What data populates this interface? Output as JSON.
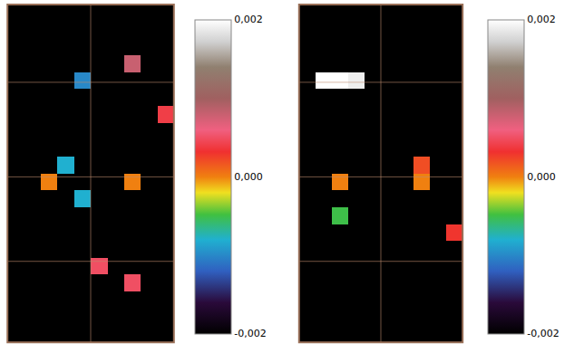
{
  "chart_data": [
    {
      "type": "heatmap",
      "tick_labels": false,
      "grid": true,
      "zlim": [
        -0.002,
        0.002
      ],
      "zticks": [
        {
          "value": 0.002,
          "label": "0,002"
        },
        {
          "value": 0,
          "label": "0,000"
        },
        {
          "value": -0.002,
          "label": "-0,002"
        }
      ],
      "z": [
        [
          -0.002,
          -0.002,
          -0.002,
          -0.002,
          -0.002,
          -0.002,
          -0.002,
          -0.002,
          -0.002,
          -0.002
        ],
        [
          -0.002,
          -0.002,
          -0.002,
          -0.002,
          -0.002,
          -0.002,
          -0.002,
          -0.002,
          -0.002,
          -0.002
        ],
        [
          -0.002,
          -0.002,
          -0.002,
          -0.002,
          -0.002,
          -0.002,
          -0.002,
          -0.002,
          -0.002,
          -0.002
        ],
        [
          -0.002,
          -0.002,
          -0.002,
          -0.002,
          -0.002,
          -0.002,
          -0.002,
          0.0008,
          -0.002,
          -0.002
        ],
        [
          -0.002,
          -0.002,
          -0.002,
          -0.002,
          -0.001,
          -0.002,
          -0.002,
          -0.002,
          -0.002,
          -0.002
        ],
        [
          -0.002,
          -0.002,
          -0.002,
          -0.002,
          -0.002,
          -0.002,
          -0.002,
          -0.002,
          -0.002,
          -0.002
        ],
        [
          -0.002,
          -0.002,
          -0.002,
          -0.002,
          -0.002,
          -0.002,
          -0.002,
          -0.002,
          -0.002,
          0.0004
        ],
        [
          -0.002,
          -0.002,
          -0.002,
          -0.002,
          -0.002,
          -0.002,
          -0.002,
          -0.002,
          -0.002,
          -0.002
        ],
        [
          -0.002,
          -0.002,
          -0.002,
          -0.002,
          -0.002,
          -0.002,
          -0.002,
          -0.002,
          -0.002,
          -0.002
        ],
        [
          -0.002,
          -0.002,
          -0.002,
          -0.0008,
          -0.002,
          -0.002,
          -0.002,
          -0.002,
          -0.002,
          -0.002
        ],
        [
          -0.002,
          -0.002,
          0,
          -0.002,
          -0.002,
          -0.002,
          -0.002,
          0,
          -0.002,
          -0.002
        ],
        [
          -0.002,
          -0.002,
          -0.002,
          -0.002,
          -0.0008,
          -0.002,
          -0.002,
          -0.002,
          -0.002,
          -0.002
        ],
        [
          -0.002,
          -0.002,
          -0.002,
          -0.002,
          -0.002,
          -0.002,
          -0.002,
          -0.002,
          -0.002,
          -0.002
        ],
        [
          -0.002,
          -0.002,
          -0.002,
          -0.002,
          -0.002,
          -0.002,
          -0.002,
          -0.002,
          -0.002,
          -0.002
        ],
        [
          -0.002,
          -0.002,
          -0.002,
          -0.002,
          -0.002,
          -0.002,
          -0.002,
          -0.002,
          -0.002,
          -0.002
        ],
        [
          -0.002,
          -0.002,
          -0.002,
          -0.002,
          -0.002,
          0.0005,
          -0.002,
          -0.002,
          -0.002,
          -0.002
        ],
        [
          -0.002,
          -0.002,
          -0.002,
          -0.002,
          -0.002,
          -0.002,
          -0.002,
          0.0005,
          -0.002,
          -0.002
        ],
        [
          -0.002,
          -0.002,
          -0.002,
          -0.002,
          -0.002,
          -0.002,
          -0.002,
          -0.002,
          -0.002,
          -0.002
        ],
        [
          -0.002,
          -0.002,
          -0.002,
          -0.002,
          -0.002,
          -0.002,
          -0.002,
          -0.002,
          -0.002,
          -0.002
        ],
        [
          -0.002,
          -0.002,
          -0.002,
          -0.002,
          -0.002,
          -0.002,
          -0.002,
          -0.002,
          -0.002,
          -0.002
        ]
      ]
    },
    {
      "type": "heatmap",
      "tick_labels": false,
      "grid": true,
      "zlim": [
        -0.002,
        0.002
      ],
      "zticks": [
        {
          "value": 0.002,
          "label": "0,002"
        },
        {
          "value": 0,
          "label": "0,000"
        },
        {
          "value": -0.002,
          "label": "-0,002"
        }
      ],
      "z": [
        [
          -0.002,
          -0.002,
          -0.002,
          -0.002,
          -0.002,
          -0.002,
          -0.002,
          -0.002,
          -0.002,
          -0.002
        ],
        [
          -0.002,
          -0.002,
          -0.002,
          -0.002,
          -0.002,
          -0.002,
          -0.002,
          -0.002,
          -0.002,
          -0.002
        ],
        [
          -0.002,
          -0.002,
          -0.002,
          -0.002,
          -0.002,
          -0.002,
          -0.002,
          -0.002,
          -0.002,
          -0.002
        ],
        [
          -0.002,
          -0.002,
          -0.002,
          -0.002,
          -0.002,
          -0.002,
          -0.002,
          -0.002,
          -0.002,
          -0.002
        ],
        [
          -0.002,
          0.002,
          0.002,
          0.0019,
          -0.002,
          -0.002,
          -0.002,
          -0.002,
          -0.002,
          -0.002
        ],
        [
          -0.002,
          -0.002,
          -0.002,
          -0.002,
          -0.002,
          -0.002,
          -0.002,
          -0.002,
          -0.002,
          -0.002
        ],
        [
          -0.002,
          -0.002,
          -0.002,
          -0.002,
          -0.002,
          -0.002,
          -0.002,
          -0.002,
          -0.002,
          -0.002
        ],
        [
          -0.002,
          -0.002,
          -0.002,
          -0.002,
          -0.002,
          -0.002,
          -0.002,
          -0.002,
          -0.002,
          -0.002
        ],
        [
          -0.002,
          -0.002,
          -0.002,
          -0.002,
          -0.002,
          -0.002,
          -0.002,
          -0.002,
          -0.002,
          -0.002
        ],
        [
          -0.002,
          -0.002,
          -0.002,
          -0.002,
          -0.002,
          -0.002,
          -0.002,
          0.0002,
          -0.002,
          -0.002
        ],
        [
          -0.002,
          -0.002,
          0,
          -0.002,
          -0.002,
          -0.002,
          -0.002,
          0,
          -0.002,
          -0.002
        ],
        [
          -0.002,
          -0.002,
          -0.002,
          -0.002,
          -0.002,
          -0.002,
          -0.002,
          -0.002,
          -0.002,
          -0.002
        ],
        [
          -0.002,
          -0.002,
          -0.0005,
          -0.002,
          -0.002,
          -0.002,
          -0.002,
          -0.002,
          -0.002,
          -0.002
        ],
        [
          -0.002,
          -0.002,
          -0.002,
          -0.002,
          -0.002,
          -0.002,
          -0.002,
          -0.002,
          -0.002,
          0.0003
        ],
        [
          -0.002,
          -0.002,
          -0.002,
          -0.002,
          -0.002,
          -0.002,
          -0.002,
          -0.002,
          -0.002,
          -0.002
        ],
        [
          -0.002,
          -0.002,
          -0.002,
          -0.002,
          -0.002,
          -0.002,
          -0.002,
          -0.002,
          -0.002,
          -0.002
        ],
        [
          -0.002,
          -0.002,
          -0.002,
          -0.002,
          -0.002,
          -0.002,
          -0.002,
          -0.002,
          -0.002,
          -0.002
        ],
        [
          -0.002,
          -0.002,
          -0.002,
          -0.002,
          -0.002,
          -0.002,
          -0.002,
          -0.002,
          -0.002,
          -0.002
        ],
        [
          -0.002,
          -0.002,
          -0.002,
          -0.002,
          -0.002,
          -0.002,
          -0.002,
          -0.002,
          -0.002,
          -0.002
        ],
        [
          -0.002,
          -0.002,
          -0.002,
          -0.002,
          -0.002,
          -0.002,
          -0.002,
          -0.002,
          -0.002,
          -0.002
        ]
      ]
    }
  ]
}
